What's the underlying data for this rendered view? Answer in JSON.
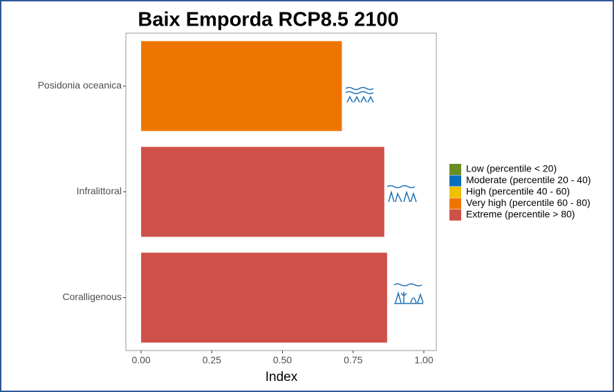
{
  "chart_data": {
    "type": "barh",
    "title": "Baix Emporda RCP8.5 2100",
    "x_label": "Index",
    "categories": [
      "Posidonia oceanica",
      "Infralittoral",
      "Coralligenous"
    ],
    "values": [
      0.71,
      0.86,
      0.87
    ],
    "colors": [
      "#ee7600",
      "#cd5049",
      "#cd5049"
    ],
    "xlim": [
      -0.054,
      1.044
    ],
    "xticks": [
      {
        "value": 0,
        "label": "0.00"
      },
      {
        "value": 0.25,
        "label": "0.25"
      },
      {
        "value": 0.5,
        "label": "0.50"
      },
      {
        "value": 0.75,
        "label": "0.75"
      },
      {
        "value": 1,
        "label": "1.00"
      }
    ],
    "grid": false,
    "legend_position": "right",
    "legend": [
      {
        "name": "Low (percentile < 20)",
        "color": "#6b8e23"
      },
      {
        "name": "Moderate (percentile 20 - 40)",
        "color": "#0a6ebd"
      },
      {
        "name": "High (percentile 40 - 60)",
        "color": "#eec000"
      },
      {
        "name": "Very high (percentile 60 - 80)",
        "color": "#ee7600"
      },
      {
        "name": "Extreme (percentile > 80)",
        "color": "#cd5049"
      }
    ]
  }
}
